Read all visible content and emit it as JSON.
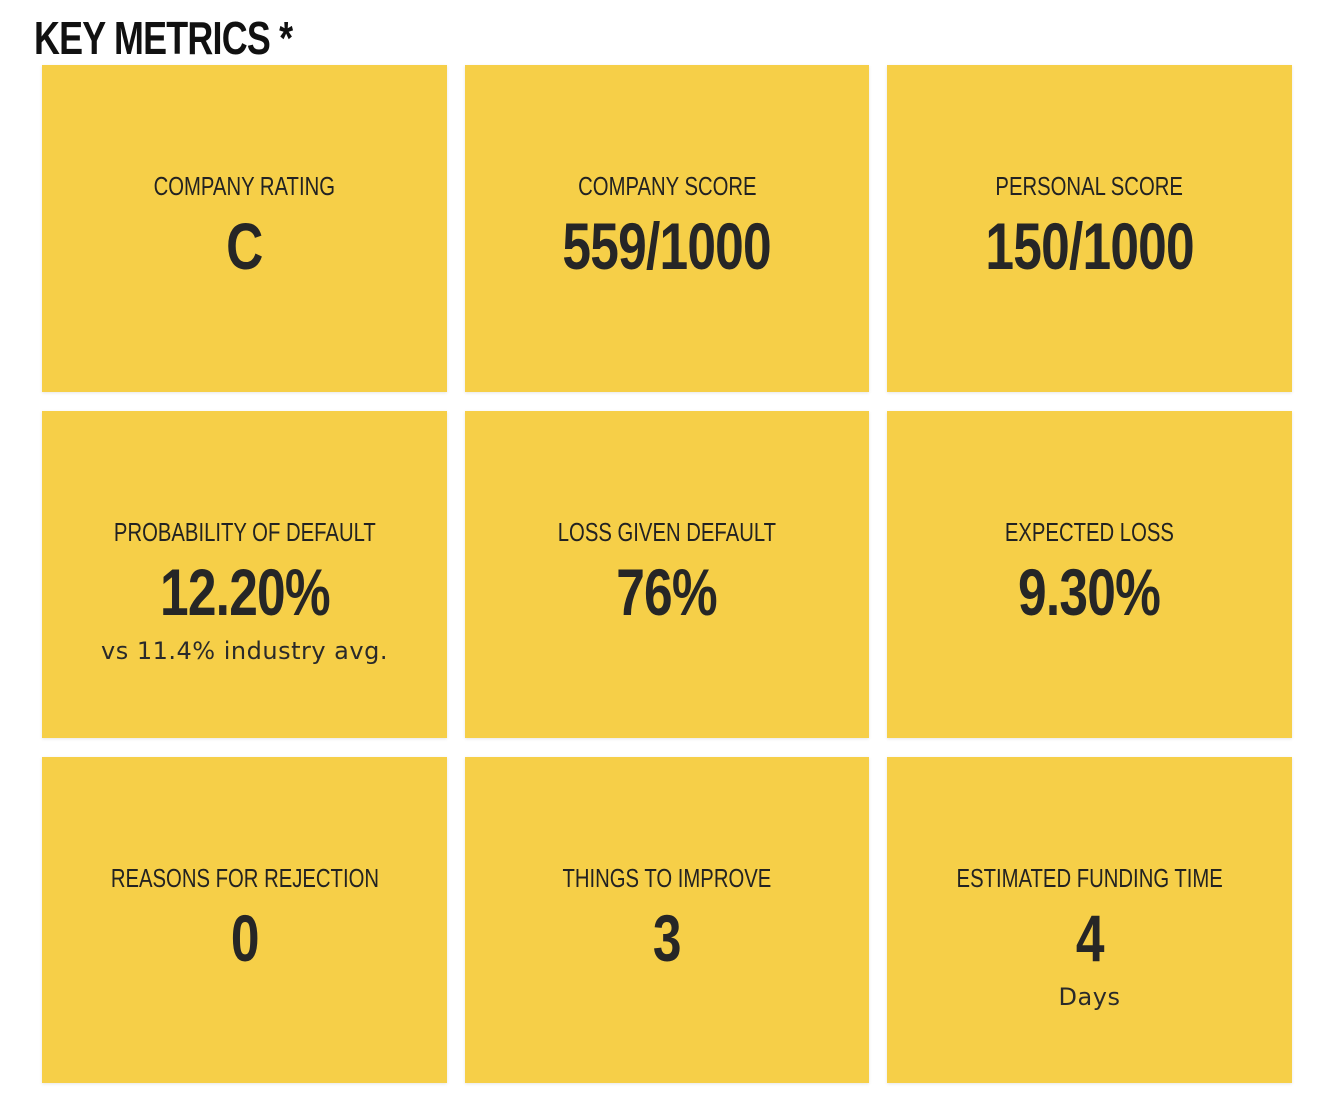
{
  "header": {
    "title": "KEY METRICS *"
  },
  "metrics": [
    {
      "label": "COMPANY RATING",
      "value": "C",
      "sub": ""
    },
    {
      "label": "COMPANY SCORE",
      "value": "559/1000",
      "sub": ""
    },
    {
      "label": "PERSONAL SCORE",
      "value": "150/1000",
      "sub": ""
    },
    {
      "label": "PROBABILITY OF DEFAULT",
      "value": "12.20%",
      "sub": "vs 11.4% industry avg."
    },
    {
      "label": "LOSS GIVEN DEFAULT",
      "value": "76%",
      "sub": ""
    },
    {
      "label": "EXPECTED LOSS",
      "value": "9.30%",
      "sub": ""
    },
    {
      "label": "REASONS FOR REJECTION",
      "value": "0",
      "sub": ""
    },
    {
      "label": "THINGS TO IMPROVE",
      "value": "3",
      "sub": ""
    },
    {
      "label": "ESTIMATED FUNDING TIME",
      "value": "4",
      "sub": "Days"
    }
  ],
  "colors": {
    "tile_background": "#f6cf48",
    "text": "#222222",
    "page_background": "#ffffff"
  }
}
